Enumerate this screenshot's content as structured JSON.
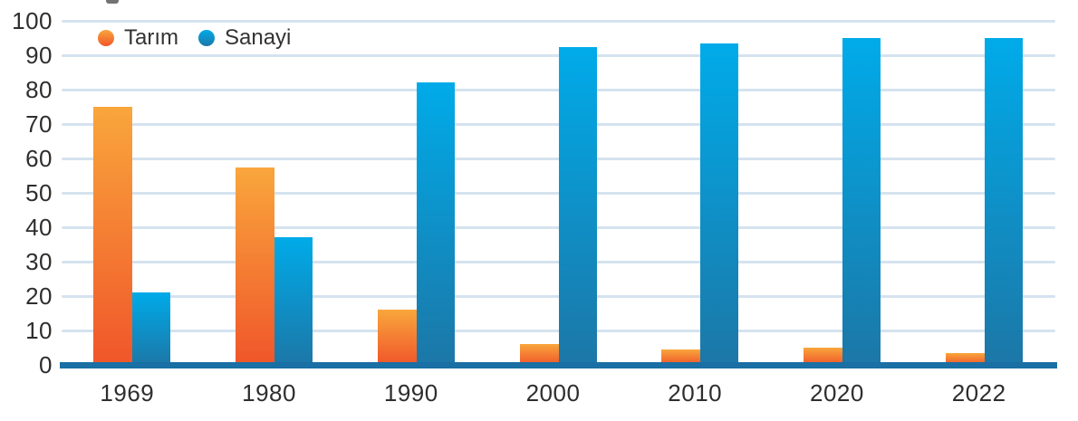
{
  "chart_data": {
    "type": "bar",
    "title": "",
    "xlabel": "",
    "ylabel": "",
    "categories": [
      "1969",
      "1980",
      "1990",
      "2000",
      "2010",
      "2020",
      "2022"
    ],
    "series": [
      {
        "name": "Tarım",
        "values": [
          75,
          57.5,
          16,
          6,
          4.5,
          5,
          3.5
        ],
        "color_top": "#F9A63C",
        "color_bottom": "#F0562A"
      },
      {
        "name": "Sanayi",
        "values": [
          21,
          37,
          82,
          92.5,
          93.5,
          95,
          95
        ],
        "color_top": "#00ABE9",
        "color_bottom": "#1C77A7"
      }
    ],
    "ylim": [
      0,
      100
    ],
    "yticks": [
      0,
      10,
      20,
      30,
      40,
      50,
      60,
      70,
      80,
      90,
      100
    ],
    "grid": "horizontal",
    "legend_position": "top-left"
  },
  "colors": {
    "gridline": "#D5E3EF",
    "baseline": "#1A6FA4",
    "axis_text": "#2e2e2e",
    "background": "#ffffff"
  }
}
